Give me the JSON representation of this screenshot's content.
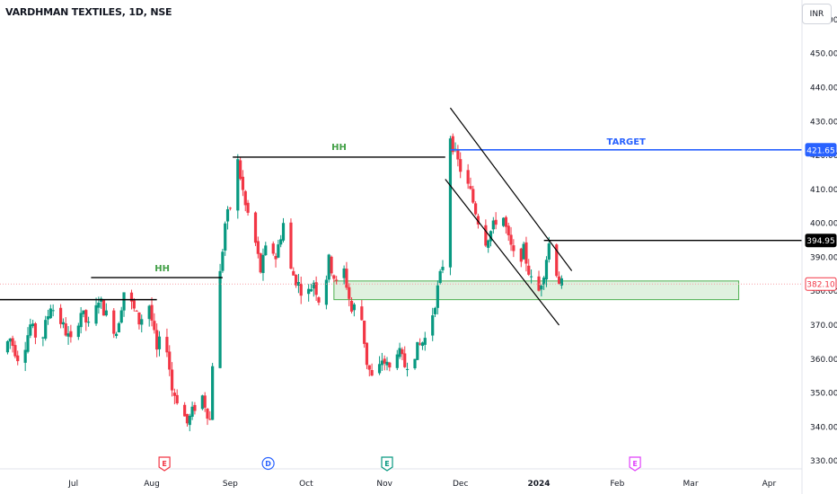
{
  "header": {
    "title": "VARDHMAN TEXTILES, 1D, NSE",
    "currency_button": "INR"
  },
  "chart_data": {
    "type": "candlestick",
    "title": "VARDHMAN TEXTILES, 1D, NSE",
    "ylim": [
      325,
      465
    ],
    "y_ticks": [
      330,
      340,
      350,
      360,
      370,
      380,
      390,
      400,
      410,
      420,
      430,
      440,
      450,
      460
    ],
    "y_tick_labels": [
      "330.00",
      "340.00",
      "350.00",
      "360.00",
      "370.00",
      "380.00",
      "390.00",
      "400.00",
      "410.00",
      "420.00",
      "430.00",
      "440.00",
      "450.00",
      "460.00"
    ],
    "x_ticks": [
      {
        "label": "Jul",
        "date": "2023-07-01"
      },
      {
        "label": "Aug",
        "date": "2023-08-01"
      },
      {
        "label": "Sep",
        "date": "2023-09-01"
      },
      {
        "label": "Oct",
        "date": "2023-10-01"
      },
      {
        "label": "Nov",
        "date": "2023-11-01"
      },
      {
        "label": "Dec",
        "date": "2023-12-01"
      },
      {
        "label": "2024",
        "date": "2024-01-01",
        "bold": true
      },
      {
        "label": "Feb",
        "date": "2024-02-01"
      },
      {
        "label": "Mar",
        "date": "2024-03-01"
      },
      {
        "label": "Apr",
        "date": "2024-04-01"
      }
    ],
    "x_range": [
      "2023-06-02",
      "2024-04-14"
    ],
    "up_color": "#089981",
    "down_color": "#f23645",
    "price_path": [
      [
        "2023-06-02",
        362
      ],
      [
        "2023-06-06",
        366
      ],
      [
        "2023-06-10",
        359
      ],
      [
        "2023-06-14",
        370
      ],
      [
        "2023-06-18",
        364
      ],
      [
        "2023-06-22",
        376
      ],
      [
        "2023-06-26",
        371
      ],
      [
        "2023-06-30",
        365
      ],
      [
        "2023-07-04",
        374
      ],
      [
        "2023-07-08",
        368
      ],
      [
        "2023-07-11",
        378
      ],
      [
        "2023-07-14",
        373
      ],
      [
        "2023-07-18",
        368
      ],
      [
        "2023-07-21",
        380
      ],
      [
        "2023-07-24",
        376
      ],
      [
        "2023-07-27",
        371
      ],
      [
        "2023-07-31",
        376
      ],
      [
        "2023-08-03",
        362
      ],
      [
        "2023-08-06",
        370
      ],
      [
        "2023-08-09",
        351
      ],
      [
        "2023-08-12",
        347
      ],
      [
        "2023-08-15",
        341
      ],
      [
        "2023-08-18",
        346
      ],
      [
        "2023-08-21",
        349
      ],
      [
        "2023-08-24",
        342
      ],
      [
        "2023-08-26",
        376
      ],
      [
        "2023-08-28",
        385
      ],
      [
        "2023-08-30",
        400
      ],
      [
        "2023-09-02",
        407
      ],
      [
        "2023-09-04",
        418
      ],
      [
        "2023-09-07",
        405
      ],
      [
        "2023-09-10",
        398
      ],
      [
        "2023-09-13",
        386
      ],
      [
        "2023-09-16",
        395
      ],
      [
        "2023-09-19",
        390
      ],
      [
        "2023-09-22",
        400
      ],
      [
        "2023-09-25",
        386
      ],
      [
        "2023-09-28",
        382
      ],
      [
        "2023-10-01",
        378
      ],
      [
        "2023-10-04",
        383
      ],
      [
        "2023-10-07",
        375
      ],
      [
        "2023-10-10",
        389
      ],
      [
        "2023-10-13",
        382
      ],
      [
        "2023-10-16",
        386
      ],
      [
        "2023-10-19",
        374
      ],
      [
        "2023-10-22",
        378
      ],
      [
        "2023-10-25",
        359
      ],
      [
        "2023-10-28",
        352
      ],
      [
        "2023-10-31",
        360
      ],
      [
        "2023-11-03",
        357
      ],
      [
        "2023-11-06",
        363
      ],
      [
        "2023-11-09",
        358
      ],
      [
        "2023-11-12",
        361
      ],
      [
        "2023-11-15",
        364
      ],
      [
        "2023-11-18",
        367
      ],
      [
        "2023-11-21",
        377
      ],
      [
        "2023-11-24",
        388
      ],
      [
        "2023-11-25",
        422
      ],
      [
        "2023-11-27",
        426
      ],
      [
        "2023-11-29",
        420
      ],
      [
        "2023-12-02",
        414
      ],
      [
        "2023-12-05",
        409
      ],
      [
        "2023-12-08",
        401
      ],
      [
        "2023-12-11",
        395
      ],
      [
        "2023-12-14",
        399
      ],
      [
        "2023-12-17",
        405
      ],
      [
        "2023-12-20",
        395
      ],
      [
        "2023-12-23",
        388
      ],
      [
        "2023-12-26",
        392
      ],
      [
        "2023-12-29",
        383
      ],
      [
        "2024-01-01",
        380
      ],
      [
        "2024-01-03",
        386
      ],
      [
        "2024-01-05",
        394
      ],
      [
        "2024-01-07",
        389
      ],
      [
        "2024-01-09",
        383
      ],
      [
        "2024-01-10",
        382
      ]
    ],
    "annotations": {
      "hh_label": "HH",
      "hh_label_2": "HH",
      "target_label": "TARGET",
      "target_price": "421.65",
      "breakout_price": "394.95",
      "last_price": "382.10",
      "levels": [
        {
          "name": "old-resistance",
          "price": 377.5,
          "from": "2023-06-02",
          "to": "2023-08-03"
        },
        {
          "name": "hh1",
          "price": 384,
          "from": "2023-07-08",
          "to": "2023-08-29"
        },
        {
          "name": "hh2",
          "price": 419.5,
          "from": "2023-09-02",
          "to": "2023-11-25"
        },
        {
          "name": "target",
          "price": 421.65,
          "from": "2023-11-27",
          "to": "2024-04-14"
        },
        {
          "name": "breakout",
          "price": 394.95,
          "from": "2024-01-03",
          "to": "2024-04-14"
        }
      ],
      "zone": {
        "top": 383,
        "bottom": 377.5,
        "from": "2023-10-12",
        "to": "2024-03-20"
      },
      "channel": {
        "upper": [
          [
            "2023-11-27",
            434
          ],
          [
            "2024-01-14",
            386
          ]
        ],
        "lower": [
          [
            "2023-11-25",
            413
          ],
          [
            "2024-01-09",
            370
          ]
        ]
      },
      "event_markers": [
        {
          "label": "E",
          "date": "2023-08-06",
          "color": "#f23645",
          "kind": "earnings"
        },
        {
          "label": "D",
          "date": "2023-09-16",
          "color": "#2962ff",
          "kind": "dividend"
        },
        {
          "label": "E",
          "date": "2023-11-02",
          "color": "#089981",
          "kind": "earnings"
        },
        {
          "label": "E",
          "date": "2024-02-08",
          "color": "#e040fb",
          "kind": "earnings"
        }
      ]
    }
  }
}
